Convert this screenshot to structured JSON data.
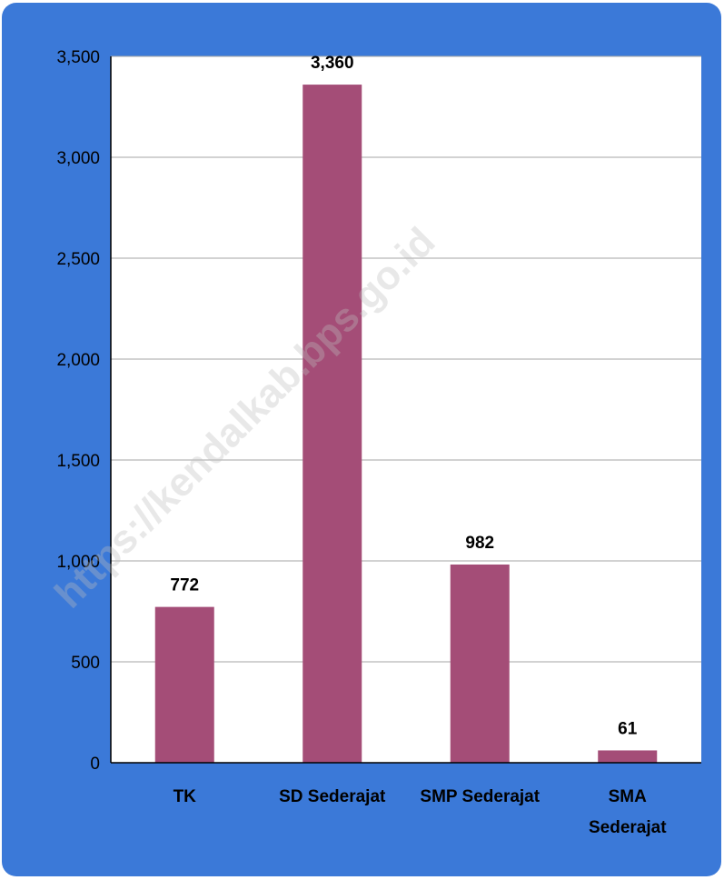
{
  "chart_data": {
    "type": "bar",
    "title": "",
    "xlabel": "",
    "ylabel": "",
    "categories": [
      "TK",
      "SD Sederajat",
      "SMP Sederajat",
      "SMA Sederajat"
    ],
    "category_lines": [
      [
        "TK"
      ],
      [
        "SD Sederajat"
      ],
      [
        "SMP Sederajat"
      ],
      [
        "SMA",
        "Sederajat"
      ]
    ],
    "values": [
      772,
      3360,
      982,
      61
    ],
    "data_labels": [
      "772",
      "3,360",
      "982",
      "61"
    ],
    "ylim": [
      0,
      3500
    ],
    "yticks": [
      0,
      500,
      1000,
      1500,
      2000,
      2500,
      3000,
      3500
    ],
    "ytick_labels": [
      "0",
      "500",
      "1,000",
      "1,500",
      "2,000",
      "2,500",
      "3,000",
      "3,500"
    ],
    "grid": true,
    "legend": "none",
    "bar_color": "#a44d77",
    "background_color": "#3b79d8"
  },
  "watermark": "https://kendalkab.bps.go.id"
}
